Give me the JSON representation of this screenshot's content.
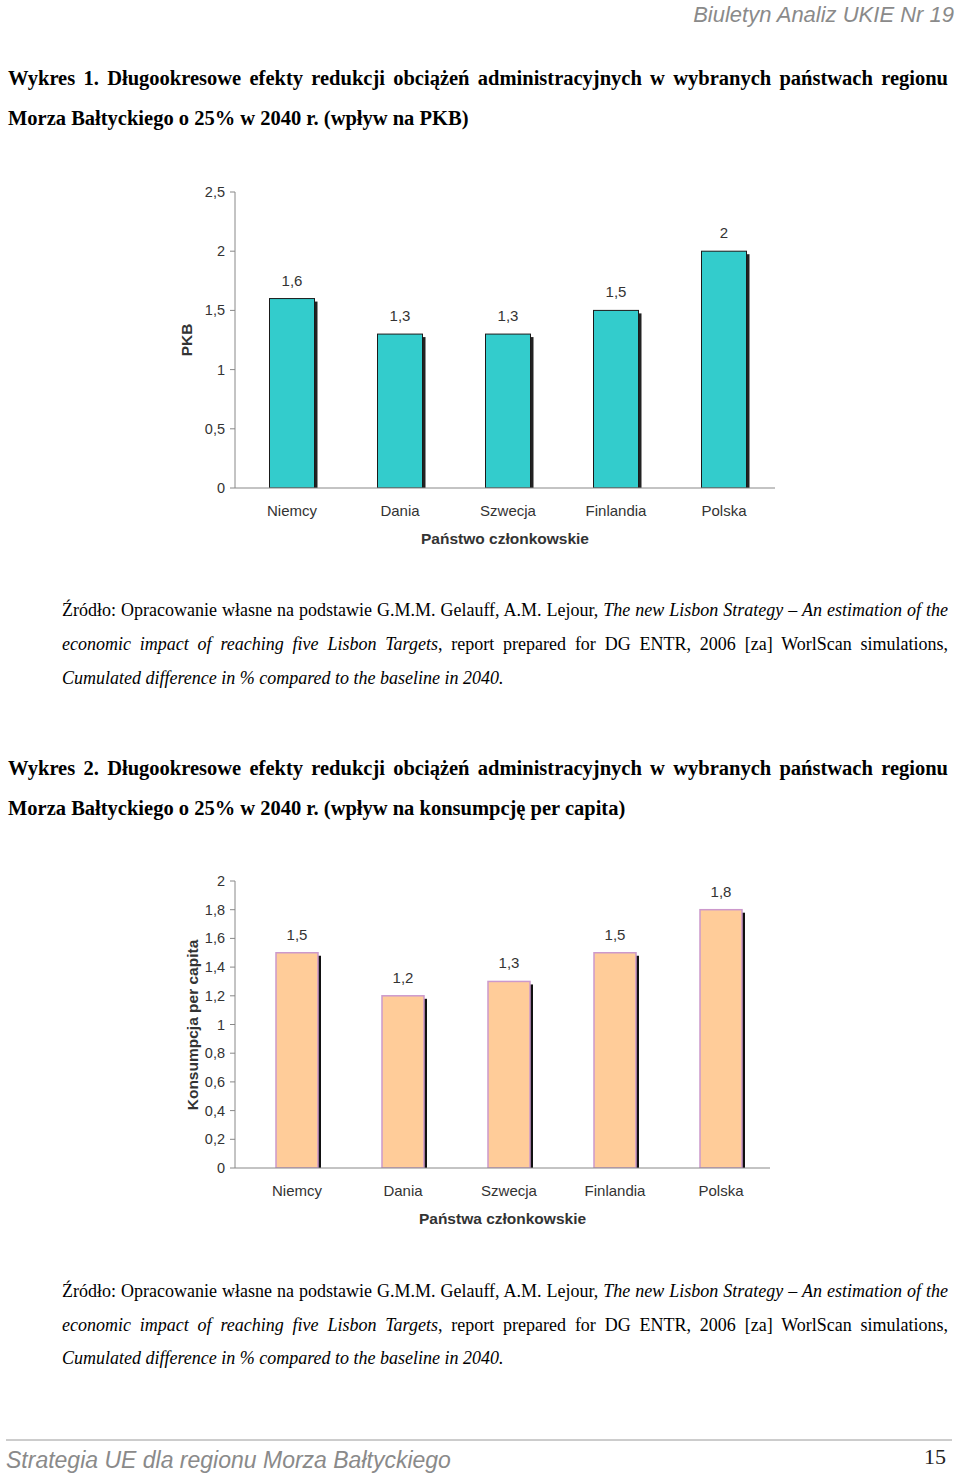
{
  "header": {
    "text": "Biuletyn Analiz UKIE Nr 19"
  },
  "chart_data": [
    {
      "type": "bar",
      "title": "Wykres 1. Długookresowe efekty redukcji obciążeń administracyjnych w wybranych państwach regionu Morza Bałtyckiego o 25% w 2040 r. (wpływ na PKB)",
      "x_label": "Państwo członkowskie",
      "y_label": "PKB",
      "categories": [
        "Niemcy",
        "Dania",
        "Szwecja",
        "Finlandia",
        "Polska"
      ],
      "values": [
        1.6,
        1.3,
        1.3,
        1.5,
        2
      ],
      "value_labels": [
        "1,6",
        "1,3",
        "1,3",
        "1,5",
        "2"
      ],
      "data_labels": true,
      "color": "#33cccc",
      "ylim": [
        0,
        2.5
      ],
      "yticks": [
        0,
        {
          "value": 0.5,
          "label": "0,5"
        },
        1,
        {
          "value": 1.5,
          "label": "1,5"
        },
        2,
        {
          "value": 2.5,
          "label": "2,5"
        }
      ],
      "grid": false
    },
    {
      "type": "bar",
      "title": "Wykres 2. Długookresowe efekty redukcji obciążeń administracyjnych w wybranych państwach regionu Morza Bałtyckiego o 25% w 2040 r. (wpływ na konsumpcję per capita)",
      "x_label": "Państwa członkowskie",
      "y_label": "Konsumpcja per capita",
      "categories": [
        "Niemcy",
        "Dania",
        "Szwecja",
        "Finlandia",
        "Polska"
      ],
      "values": [
        1.5,
        1.2,
        1.3,
        1.5,
        1.8
      ],
      "value_labels": [
        "1,5",
        "1,2",
        "1,3",
        "1,5",
        "1,8"
      ],
      "data_labels": true,
      "color": "#ffcc99",
      "ylim": [
        0,
        2
      ],
      "yticks": [
        0,
        {
          "value": 0.2,
          "label": "0,2"
        },
        {
          "value": 0.4,
          "label": "0,4"
        },
        {
          "value": 0.6,
          "label": "0,6"
        },
        {
          "value": 0.8,
          "label": "0,8"
        },
        1,
        {
          "value": 1.2,
          "label": "1,2"
        },
        {
          "value": 1.4,
          "label": "1,4"
        },
        {
          "value": 1.6,
          "label": "1,6"
        },
        {
          "value": 1.8,
          "label": "1,8"
        },
        2
      ],
      "grid": false
    }
  ],
  "figures": [
    {
      "source": [
        {
          "text": "Źródło: Opracowanie własne na podstawie G.M.M. Gelauff, A.M. Lejour, ",
          "italic": false
        },
        {
          "text": "The new Lisbon Strategy – An estimation of the economic impact of reaching five Lisbon Targets",
          "italic": true
        },
        {
          "text": ", report prepared for DG ENTR, 2006 [za] WorlScan simulations, ",
          "italic": false
        },
        {
          "text": "Cumulated difference in % compared to the baseline in 2040.",
          "italic": true
        }
      ]
    },
    {
      "source": [
        {
          "text": "Źródło: Opracowanie własne na podstawie G.M.M. Gelauff, A.M. Lejour, ",
          "italic": false
        },
        {
          "text": "The new Lisbon Strategy – An estimation of the economic impact of reaching five Lisbon Targets",
          "italic": true
        },
        {
          "text": ", report prepared for DG ENTR, 2006 [za] WorlScan simulations, ",
          "italic": false
        },
        {
          "text": "Cumulated difference in % compared to the baseline in 2040.",
          "italic": true
        }
      ]
    }
  ],
  "footer": {
    "title": "Strategia UE dla regionu Morza Bałtyckiego",
    "page": "15"
  }
}
